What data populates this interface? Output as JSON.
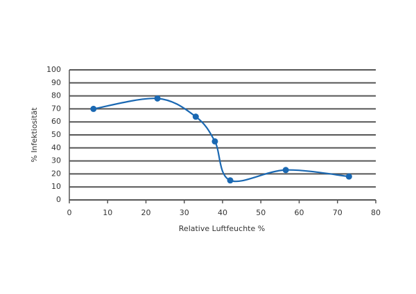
{
  "chart_data": {
    "type": "line",
    "x_label": "Relative Luftfeuchte %",
    "y_label": "% Infektiosität",
    "x": [
      6.3,
      23,
      33,
      38,
      42,
      56.5,
      73
    ],
    "series": [
      {
        "color": "#1a68b2",
        "values": [
          70,
          78,
          64,
          45,
          15,
          23,
          18
        ]
      }
    ],
    "xlim": [
      0,
      80
    ],
    "xticks": [
      0,
      10,
      20,
      30,
      40,
      50,
      60,
      70,
      80
    ],
    "ylim": [
      0,
      100
    ],
    "yticks": [
      0,
      10,
      20,
      30,
      40,
      50,
      60,
      70,
      80,
      90,
      100
    ],
    "grid": true,
    "smooth": true,
    "markers": true
  }
}
